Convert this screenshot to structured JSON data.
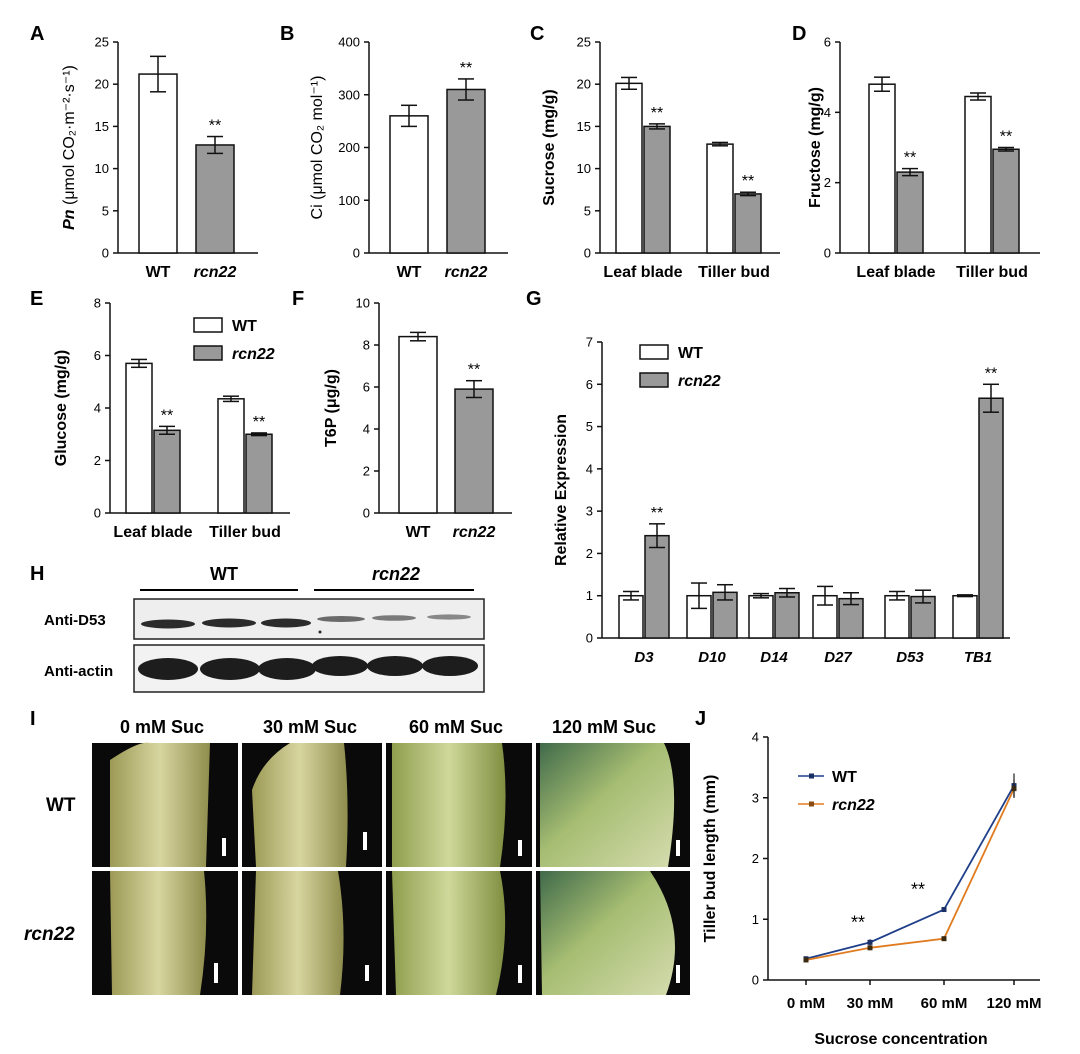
{
  "colors": {
    "wt": "#ffffff",
    "rcn22": "#999999",
    "axis": "#111111",
    "line_wt": "#1f3f8a",
    "line_rcn22": "#e07b20"
  },
  "panels": [
    "A",
    "B",
    "C",
    "D",
    "E",
    "F",
    "G",
    "H",
    "I",
    "J"
  ],
  "chart_data": [
    {
      "panel": "A",
      "type": "bar",
      "categories": [
        "WT",
        "rcn22"
      ],
      "values": [
        21.2,
        12.8
      ],
      "errors": [
        2.1,
        1.0
      ],
      "ylabel_prefix": "Pn",
      "ylabel": "(μmol CO₂·m⁻²·s⁻¹)",
      "ylim": [
        0,
        25
      ],
      "yticks": [
        0,
        5,
        10,
        15,
        20,
        25
      ],
      "significance": [
        "",
        "**"
      ]
    },
    {
      "panel": "B",
      "type": "bar",
      "categories": [
        "WT",
        "rcn22"
      ],
      "values": [
        260,
        310
      ],
      "errors": [
        20,
        20
      ],
      "ylabel": "Ci (μmol CO₂ mol⁻¹)",
      "ylim": [
        0,
        400
      ],
      "yticks": [
        0,
        100,
        200,
        300,
        400
      ],
      "significance": [
        "",
        "**"
      ]
    },
    {
      "panel": "C",
      "type": "bar",
      "categories": [
        "Leaf blade",
        "Tiller bud"
      ],
      "series": [
        {
          "name": "WT",
          "values": [
            20.1,
            12.9
          ],
          "errors": [
            0.7,
            0.2
          ]
        },
        {
          "name": "rcn22",
          "values": [
            15.0,
            7.0
          ],
          "errors": [
            0.3,
            0.2
          ]
        }
      ],
      "ylabel": "Sucrose (mg/g)",
      "ylim": [
        0,
        25
      ],
      "yticks": [
        0,
        5,
        10,
        15,
        20,
        25
      ],
      "significance": [
        [
          "",
          "**"
        ],
        [
          "",
          "**"
        ]
      ]
    },
    {
      "panel": "D",
      "type": "bar",
      "categories": [
        "Leaf blade",
        "Tiller bud"
      ],
      "series": [
        {
          "name": "WT",
          "values": [
            4.8,
            4.45
          ],
          "errors": [
            0.2,
            0.1
          ]
        },
        {
          "name": "rcn22",
          "values": [
            2.3,
            2.95
          ],
          "errors": [
            0.1,
            0.05
          ]
        }
      ],
      "ylabel": "Fructose (mg/g)",
      "ylim": [
        0,
        6
      ],
      "yticks": [
        0,
        2,
        4,
        6
      ],
      "significance": [
        [
          "",
          "**"
        ],
        [
          "",
          "**"
        ]
      ]
    },
    {
      "panel": "E",
      "type": "bar",
      "categories": [
        "Leaf blade",
        "Tiller bud"
      ],
      "series": [
        {
          "name": "WT",
          "values": [
            5.7,
            4.35
          ],
          "errors": [
            0.15,
            0.1
          ]
        },
        {
          "name": "rcn22",
          "values": [
            3.15,
            3.0
          ],
          "errors": [
            0.15,
            0.05
          ]
        }
      ],
      "legend": [
        "WT",
        "rcn22"
      ],
      "ylabel": "Glucose (mg/g)",
      "ylim": [
        0,
        8
      ],
      "yticks": [
        0,
        2,
        4,
        6,
        8
      ],
      "significance": [
        [
          "",
          "**"
        ],
        [
          "",
          "**"
        ]
      ]
    },
    {
      "panel": "F",
      "type": "bar",
      "categories": [
        "WT",
        "rcn22"
      ],
      "values": [
        8.4,
        5.9
      ],
      "errors": [
        0.2,
        0.4
      ],
      "ylabel": "T6P (μg/g)",
      "ylim": [
        0,
        10
      ],
      "yticks": [
        0,
        2,
        4,
        6,
        8,
        10
      ],
      "significance": [
        "",
        "**"
      ]
    },
    {
      "panel": "G",
      "type": "bar",
      "categories": [
        "D3",
        "D10",
        "D14",
        "D27",
        "D53",
        "TB1"
      ],
      "series": [
        {
          "name": "WT",
          "values": [
            1.0,
            1.0,
            1.0,
            1.0,
            1.0,
            1.0
          ],
          "errors": [
            0.1,
            0.3,
            0.05,
            0.22,
            0.1,
            0.02
          ]
        },
        {
          "name": "rcn22",
          "values": [
            2.42,
            1.08,
            1.07,
            0.93,
            0.98,
            5.67
          ],
          "errors": [
            0.28,
            0.18,
            0.1,
            0.14,
            0.15,
            0.33
          ]
        }
      ],
      "legend": [
        "WT",
        "rcn22"
      ],
      "ylabel": "Relative Expression",
      "ylim": [
        0,
        7
      ],
      "yticks": [
        0,
        1,
        2,
        3,
        4,
        5,
        6,
        7
      ],
      "significance": [
        [
          "",
          "**"
        ],
        [
          "",
          ""
        ],
        [
          "",
          ""
        ],
        [
          "",
          ""
        ],
        [
          "",
          ""
        ],
        [
          "",
          "**"
        ]
      ]
    },
    {
      "panel": "J",
      "type": "line",
      "x": [
        "0 mM",
        "30 mM",
        "60 mM",
        "120 mM"
      ],
      "series": [
        {
          "name": "WT",
          "values": [
            0.35,
            0.62,
            1.16,
            3.2
          ],
          "errors": [
            0.03,
            0.05,
            0.03,
            0.2
          ]
        },
        {
          "name": "rcn22",
          "values": [
            0.33,
            0.53,
            0.68,
            3.15
          ],
          "errors": [
            0.03,
            0.03,
            0.03,
            0.15
          ]
        }
      ],
      "legend": [
        "WT",
        "rcn22"
      ],
      "xlabel": "Sucrose  concentration",
      "ylabel": "Tiller bud length (mm)",
      "ylim": [
        0,
        4
      ],
      "yticks": [
        0,
        1,
        2,
        3,
        4
      ],
      "significance": [
        "",
        "**",
        "**",
        ""
      ]
    }
  ],
  "panel_h": {
    "group_labels": [
      "WT",
      "rcn22"
    ],
    "row_labels": [
      "Anti-D53",
      "Anti-actin"
    ]
  },
  "panel_i": {
    "columns": [
      "0 mM Suc",
      "30 mM Suc",
      "60 mM Suc",
      "120 mM Suc"
    ],
    "rows": [
      "WT",
      "rcn22"
    ]
  }
}
